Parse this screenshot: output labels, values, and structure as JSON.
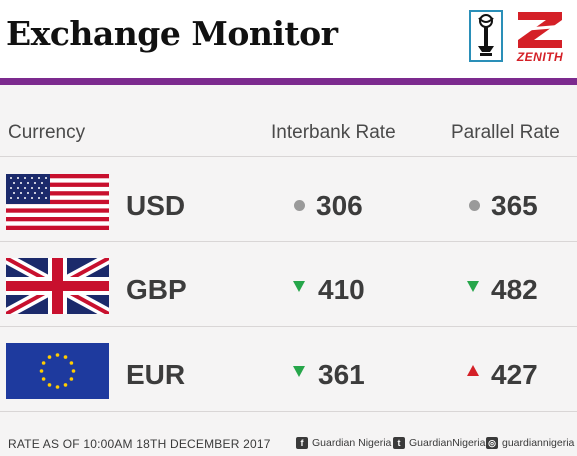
{
  "header": {
    "title": "Exchange Monitor",
    "sponsor_text": "ZENITH"
  },
  "columns": {
    "currency": "Currency",
    "interbank": "Interbank Rate",
    "parallel": "Parallel Rate"
  },
  "rows": [
    {
      "code": "USD",
      "flag": "us-flag-icon",
      "interbank": {
        "value": "306",
        "trend": "unchanged"
      },
      "parallel": {
        "value": "365",
        "trend": "unchanged"
      }
    },
    {
      "code": "GBP",
      "flag": "uk-flag-icon",
      "interbank": {
        "value": "410",
        "trend": "down"
      },
      "parallel": {
        "value": "482",
        "trend": "down"
      }
    },
    {
      "code": "EUR",
      "flag": "eu-flag-icon",
      "interbank": {
        "value": "361",
        "trend": "down"
      },
      "parallel": {
        "value": "427",
        "trend": "up"
      }
    }
  ],
  "footer": {
    "date": "RATE AS OF 10:00AM 18TH DECEMBER 2017",
    "facebook": "Guardian Nigeria",
    "twitter": "GuardianNigeria",
    "instagram": "guardiannigeria"
  },
  "colors": {
    "accent_purple": "#7c2a8e",
    "up_red": "#d42027",
    "down_green": "#26a64a",
    "neutral_grey": "#9a9a9a"
  }
}
